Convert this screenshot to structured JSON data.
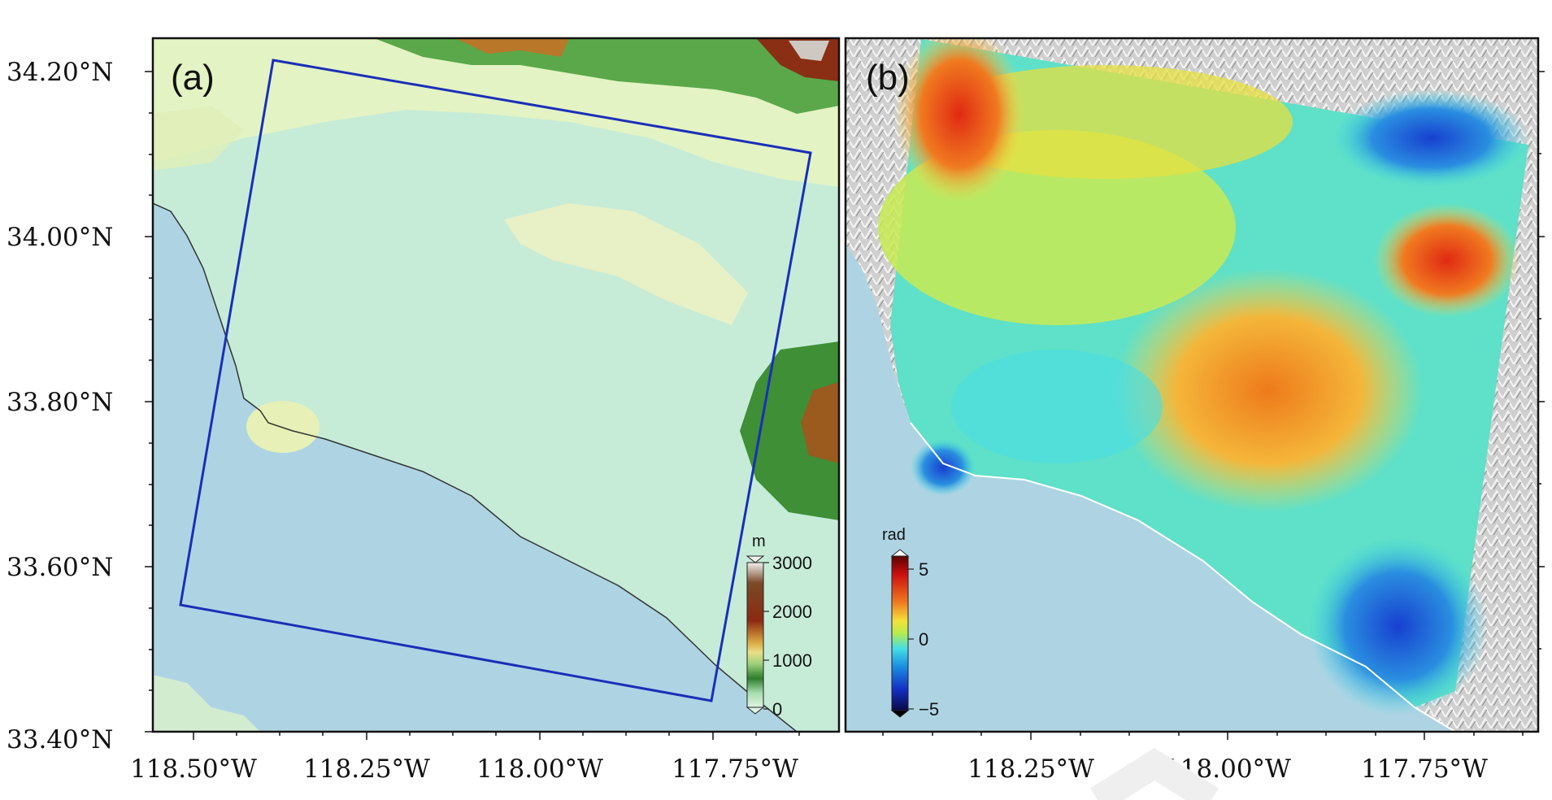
{
  "panels": {
    "a": {
      "label": "(a)",
      "colorbar": {
        "unit": "m",
        "ticks": [
          "3000",
          "2000",
          "1000",
          "0"
        ],
        "colors": [
          "#e5e2dc",
          "#6b2e14",
          "#a56b1e",
          "#e6d478",
          "#9ccf6a",
          "#2f7f2a",
          "#bfe6c5",
          "#d8f0d0"
        ]
      },
      "footprint_color": "#1a2fb8"
    },
    "b": {
      "label": "(b)",
      "colorbar": {
        "unit": "rad",
        "ticks": [
          "5",
          "0",
          "−5"
        ],
        "colors": [
          "#6e0000",
          "#e01b1b",
          "#f07b1b",
          "#f5e23a",
          "#c9ee4a",
          "#4ee0e6",
          "#1e90e6",
          "#1733c9",
          "#0d0d60"
        ]
      }
    }
  },
  "axes": {
    "lat_labels": [
      "34.20°N",
      "34.00°N",
      "33.80°N",
      "33.60°N",
      "33.40°N"
    ],
    "lon_labels_a": [
      "118.50°W",
      "118.25°W",
      "118.00°W",
      "117.75°W"
    ],
    "lon_labels_b": [
      "118.25°W",
      "118.00°W",
      "117.75°W"
    ]
  },
  "colors": {
    "sea": "#aed4e3",
    "lowland": "#c6ecd8",
    "mountain_green": "#2f7f2a",
    "mountain_brown": "#7a3a16",
    "hillshade": "#d9d9d9"
  }
}
